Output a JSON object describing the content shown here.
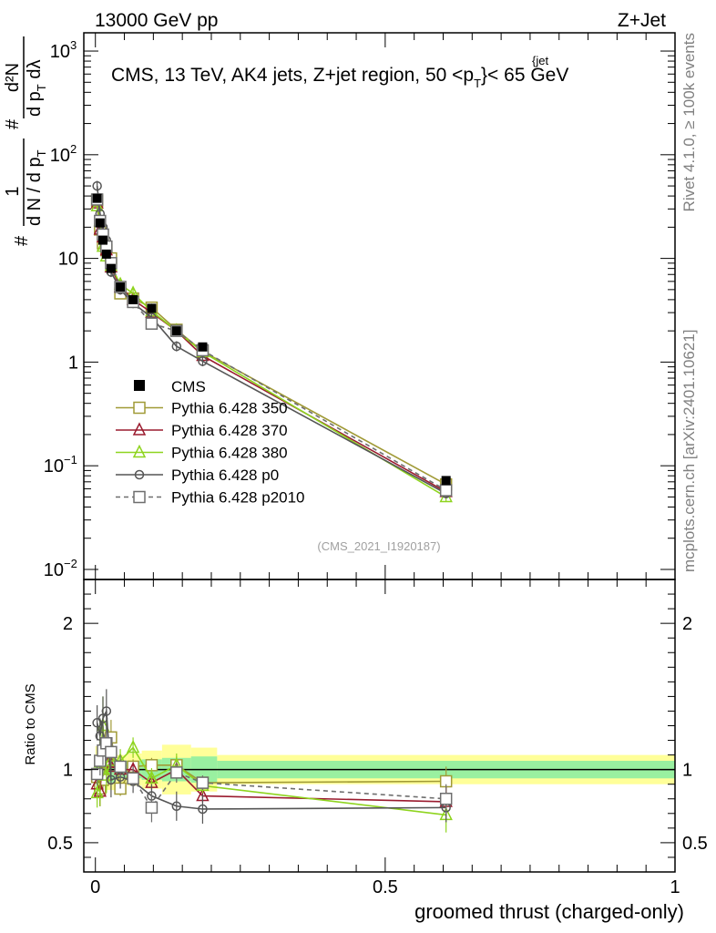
{
  "header": {
    "left": "13000 GeV pp",
    "right": "Z+Jet"
  },
  "side_labels": {
    "rivet": "Rivet 4.1.0, ≥ 100k events",
    "mcplots": "mcplots.cern.ch [arXiv:2401.10621]"
  },
  "watermark": "(CMS_2021_I1920187)",
  "chart_data": [
    {
      "panel": "main",
      "type": "line",
      "title": "CMS, 13 TeV, AK4 jets, Z+jet region, 50 <p_T^{jet}< 65 GeV",
      "title_parts": {
        "a": "CMS, 13 TeV, AK4 jets, Z+jet region, 50 <p",
        "sub": "T",
        "sup": "{jet",
        "b": "}< 65 GeV"
      },
      "ylabel_parts": {
        "frac1_num": "1",
        "frac1_den": "d N / d p",
        "frac2_num": "d²N",
        "frac2_den": "d p",
        "frac2_den_b": " dλ",
        "sub": "T",
        "hash": "#"
      },
      "yscale": "log",
      "ylim": [
        0.008,
        1500
      ],
      "xlim": [
        -0.02,
        1.0
      ],
      "yticks": [
        {
          "v": 0.01,
          "base": "10",
          "exp": "−2"
        },
        {
          "v": 0.1,
          "base": "10",
          "exp": "−1"
        },
        {
          "v": 1,
          "base": "1",
          "exp": ""
        },
        {
          "v": 10,
          "base": "10",
          "exp": ""
        },
        {
          "v": 100,
          "base": "10",
          "exp": "2"
        },
        {
          "v": 1000,
          "base": "10",
          "exp": "3"
        }
      ],
      "x": [
        0.003,
        0.008,
        0.013,
        0.019,
        0.027,
        0.043,
        0.065,
        0.097,
        0.14,
        0.185,
        0.605
      ],
      "data": {
        "name": "CMS",
        "values": [
          38,
          22,
          15,
          11,
          8,
          5.3,
          4.0,
          3.3,
          2.0,
          1.4,
          0.072
        ]
      },
      "series": [
        {
          "name": "Pythia 6.428 350",
          "color": "#a09a36",
          "marker": "square",
          "dash": false,
          "values": [
            36,
            19,
            14,
            12,
            10,
            4.6,
            4.1,
            3.35,
            2.05,
            1.27,
            0.066
          ]
        },
        {
          "name": "Pythia 6.428 370",
          "color": "#9a1b2e",
          "marker": "triangle",
          "dash": false,
          "values": [
            34,
            19,
            16,
            12,
            8.2,
            5.3,
            4.0,
            3.0,
            2.0,
            1.15,
            0.056
          ]
        },
        {
          "name": "Pythia 6.428 380",
          "color": "#8ed41e",
          "marker": "triangle",
          "dash": false,
          "values": [
            32,
            23,
            13,
            10.5,
            8.5,
            5.6,
            4.6,
            3.1,
            2.0,
            1.25,
            0.05
          ]
        },
        {
          "name": "Pythia 6.428 p0",
          "color": "#555555",
          "marker": "circle",
          "dash": false,
          "values": [
            50,
            27,
            20,
            15,
            7.4,
            5.0,
            3.7,
            2.7,
            1.42,
            1.02,
            0.054
          ]
        },
        {
          "name": "Pythia 6.428 p2010",
          "color": "#6e6e6e",
          "marker": "square",
          "dash": true,
          "values": [
            37,
            23,
            17,
            13,
            9.0,
            5.3,
            3.8,
            2.35,
            2.0,
            1.3,
            0.058
          ]
        }
      ]
    },
    {
      "panel": "ratio",
      "type": "line",
      "ylabel": "Ratio to CMS",
      "ylim": [
        0.3,
        2.3
      ],
      "yticks": [
        0.5,
        1,
        2
      ],
      "xlim": [
        -0.02,
        1.0
      ],
      "xticks": [
        0,
        0.5,
        1
      ],
      "xlabel": "groomed thrust (charged-only)",
      "bands": [
        {
          "x0": 0.0,
          "x1": 0.02,
          "stat": 0.1,
          "total": 0.16
        },
        {
          "x0": 0.02,
          "x1": 0.035,
          "stat": 0.09,
          "total": 0.14
        },
        {
          "x0": 0.035,
          "x1": 0.055,
          "stat": 0.06,
          "total": 0.1
        },
        {
          "x0": 0.055,
          "x1": 0.08,
          "stat": 0.06,
          "total": 0.11
        },
        {
          "x0": 0.08,
          "x1": 0.115,
          "stat": 0.07,
          "total": 0.13
        },
        {
          "x0": 0.115,
          "x1": 0.165,
          "stat": 0.08,
          "total": 0.17
        },
        {
          "x0": 0.165,
          "x1": 0.21,
          "stat": 0.09,
          "total": 0.15
        },
        {
          "x0": 0.21,
          "x1": 1.0,
          "stat": 0.06,
          "total": 0.1
        }
      ],
      "series": [
        {
          "name": "Pythia 6.428 350",
          "values": [
            0.95,
            0.87,
            0.93,
            1.05,
            1.22,
            0.87,
            1.02,
            1.03,
            1.03,
            0.91,
            0.92
          ],
          "err": [
            0.05,
            0.12,
            0.08,
            0.1,
            0.12,
            0.05,
            0.05,
            0.05,
            0.06,
            0.04,
            0.1
          ]
        },
        {
          "name": "Pythia 6.428 370",
          "values": [
            0.9,
            0.85,
            1.1,
            1.1,
            1.02,
            1.0,
            1.0,
            0.91,
            1.0,
            0.82,
            0.78
          ],
          "err": [
            0.05,
            0.1,
            0.08,
            0.1,
            0.1,
            0.05,
            0.05,
            0.05,
            0.06,
            0.05,
            0.1
          ]
        },
        {
          "name": "Pythia 6.428 380",
          "values": [
            0.84,
            1.05,
            1.3,
            0.96,
            1.06,
            1.06,
            1.15,
            0.94,
            1.03,
            0.89,
            0.69
          ],
          "err": [
            0.1,
            0.3,
            0.2,
            0.12,
            0.12,
            0.08,
            0.07,
            0.07,
            0.08,
            0.05,
            0.12
          ]
        },
        {
          "name": "Pythia 6.428 p0",
          "values": [
            1.32,
            1.23,
            1.35,
            1.4,
            0.93,
            0.95,
            0.92,
            0.82,
            0.75,
            0.73,
            0.74
          ],
          "err": [
            0.12,
            0.12,
            0.15,
            0.15,
            0.12,
            0.08,
            0.08,
            0.08,
            0.1,
            0.1,
            0.1
          ]
        },
        {
          "name": "Pythia 6.428 p2010",
          "values": [
            0.97,
            1.06,
            1.13,
            1.18,
            1.12,
            1.02,
            0.94,
            0.74,
            0.98,
            0.91,
            0.8
          ],
          "err": [
            0.08,
            0.1,
            0.1,
            0.12,
            0.1,
            0.08,
            0.08,
            0.1,
            0.07,
            0.05,
            0.1
          ]
        }
      ]
    }
  ]
}
